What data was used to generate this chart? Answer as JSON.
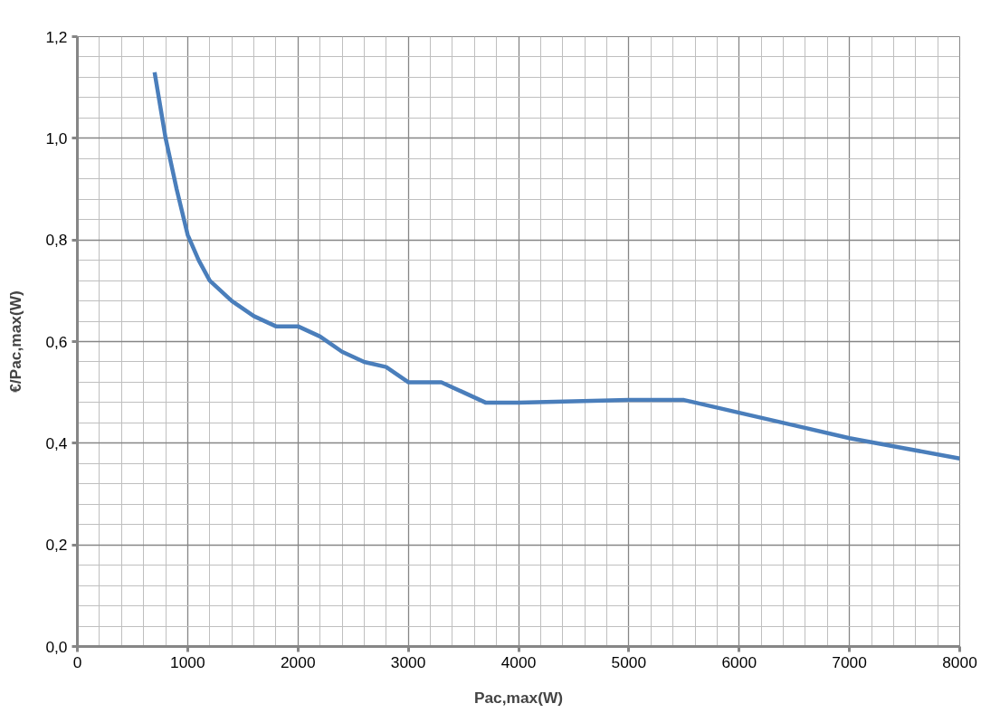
{
  "chart_data": {
    "type": "line",
    "xlabel": "Pac,max(W)",
    "ylabel": "€/Pac,max(W)",
    "x": [
      700,
      800,
      900,
      1000,
      1100,
      1200,
      1400,
      1600,
      1800,
      2000,
      2200,
      2400,
      2600,
      2800,
      3000,
      3200,
      3300,
      3500,
      3700,
      3800,
      4000,
      5000,
      5500,
      5600,
      6000,
      6500,
      7000,
      7500,
      8000
    ],
    "series": [
      {
        "color": "#4a7ebb",
        "values": [
          1.13,
          1.0,
          0.9,
          0.81,
          0.76,
          0.72,
          0.68,
          0.65,
          0.63,
          0.63,
          0.61,
          0.58,
          0.56,
          0.55,
          0.52,
          0.52,
          0.52,
          0.5,
          0.48,
          0.48,
          0.48,
          0.485,
          0.485,
          0.48,
          0.46,
          0.435,
          0.41,
          0.39,
          0.37
        ]
      }
    ],
    "xlim": [
      0,
      8000
    ],
    "ylim": [
      0,
      1.2
    ],
    "xticks": [
      0,
      1000,
      2000,
      3000,
      4000,
      5000,
      6000,
      7000,
      8000
    ],
    "yticks": [
      {
        "value": 0,
        "label": "0,0"
      },
      {
        "value": 0.2,
        "label": "0,2"
      },
      {
        "value": 0.4,
        "label": "0,4"
      },
      {
        "value": 0.6,
        "label": "0,6"
      },
      {
        "value": 0.8,
        "label": "0,8"
      },
      {
        "value": 1.0,
        "label": "1,0"
      },
      {
        "value": 1.2,
        "label": "1,2"
      }
    ],
    "grid": true,
    "marker": "none",
    "line_style": "solid"
  }
}
